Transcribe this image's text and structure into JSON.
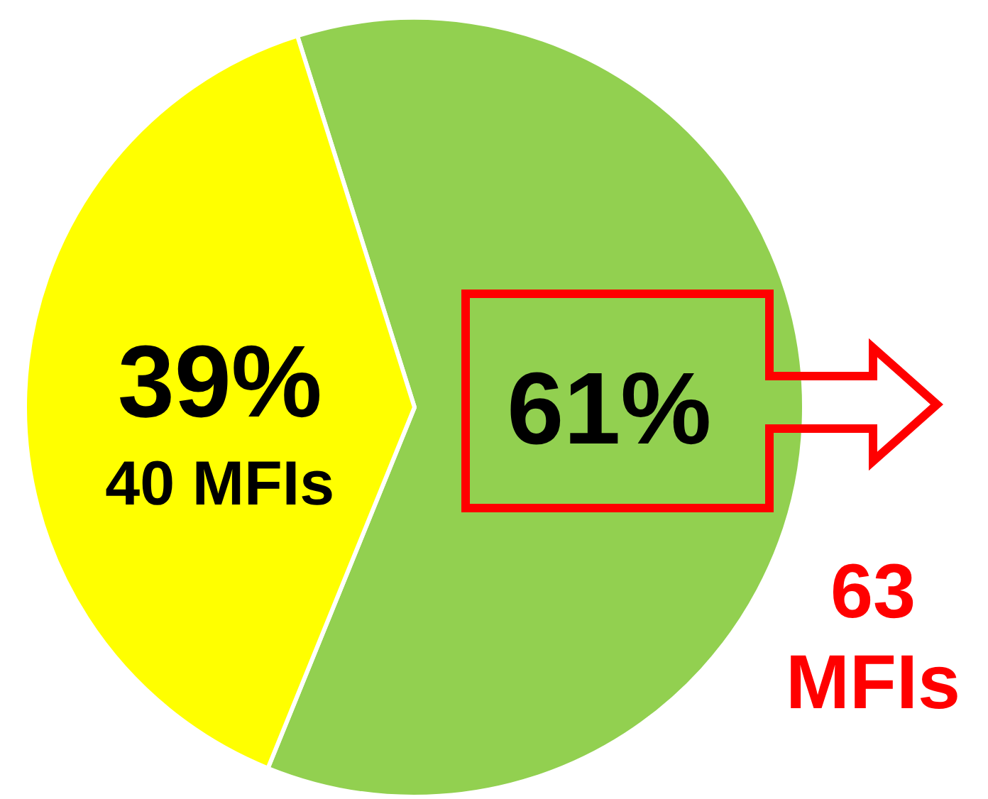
{
  "chart_data": {
    "type": "pie",
    "categories": [
      null,
      null
    ],
    "values": [
      61,
      39
    ],
    "colors": [
      "#92d050",
      "#ffff00"
    ],
    "value_labels": [
      "61%",
      "39%\n40 MFIs"
    ],
    "legend": false,
    "annotations": [
      "63 MFIs"
    ]
  }
}
